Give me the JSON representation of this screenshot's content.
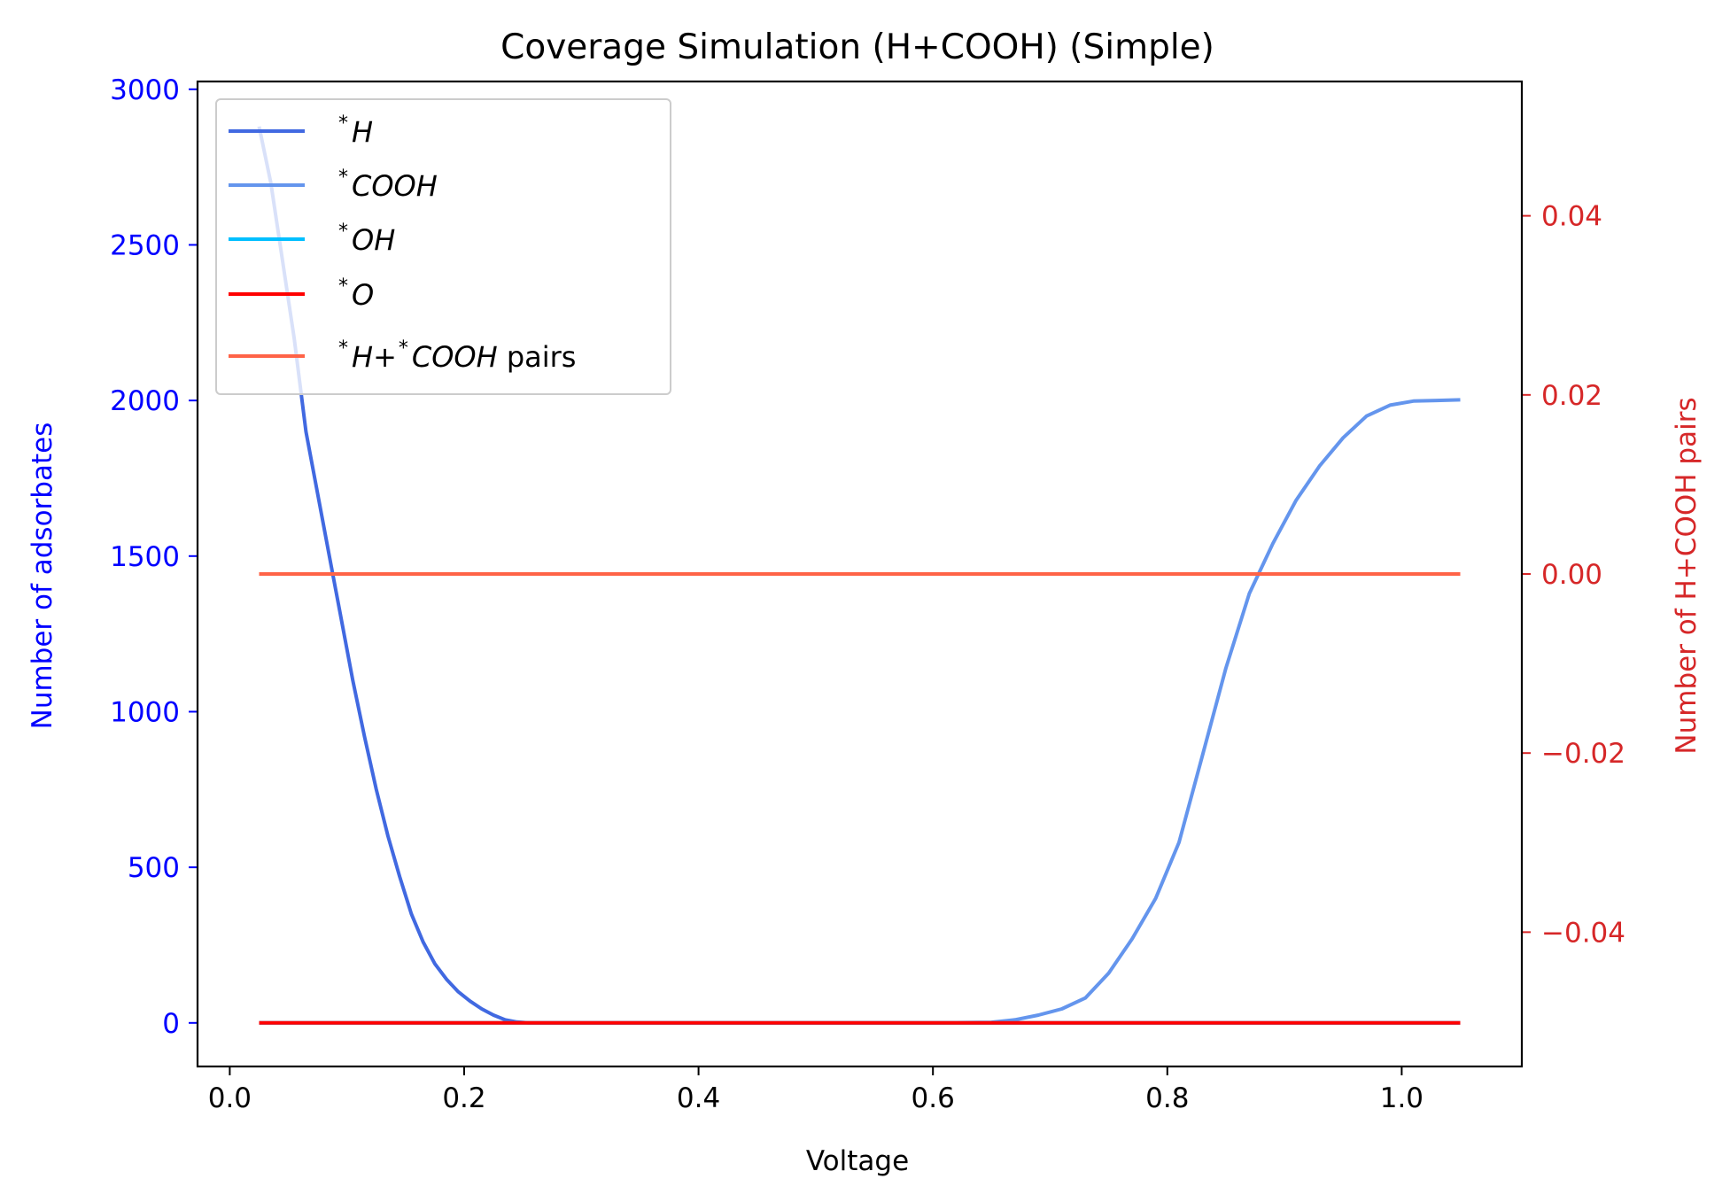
{
  "chart_data": {
    "type": "line",
    "title": "Coverage Simulation (H+COOH) (Simple)",
    "xlabel": "Voltage",
    "ylabel_left": "Number of adsorbates",
    "ylabel_right": "Number of H+COOH pairs",
    "xlim": [
      -0.0275,
      1.1025
    ],
    "ylim_left": [
      -140,
      3025
    ],
    "ylim_right": [
      -0.055,
      0.055
    ],
    "x_ticks": [
      "0.0",
      "0.2",
      "0.4",
      "0.6",
      "0.8",
      "1.0"
    ],
    "y_left_ticks": [
      "0",
      "500",
      "1000",
      "1500",
      "2000",
      "2500",
      "3000"
    ],
    "y_right_ticks": [
      "−0.04",
      "−0.02",
      "0.00",
      "0.02",
      "0.04"
    ],
    "grid": false,
    "legend_position": "upper-left",
    "colors": {
      "left_axis": "#0000ff",
      "right_axis": "#d62728"
    },
    "series": [
      {
        "name_sup": "*",
        "name_main": "H",
        "name_suffix": "",
        "color": "#4169e1",
        "axis": "left",
        "x": [
          0.025,
          0.035,
          0.045,
          0.055,
          0.065,
          0.075,
          0.085,
          0.095,
          0.105,
          0.115,
          0.125,
          0.135,
          0.145,
          0.155,
          0.165,
          0.175,
          0.185,
          0.195,
          0.205,
          0.215,
          0.225,
          0.235,
          0.245,
          0.255,
          0.3,
          0.4,
          0.5,
          0.6,
          0.7,
          0.8,
          0.9,
          1.0,
          1.05
        ],
        "y": [
          2880,
          2700,
          2450,
          2200,
          1900,
          1700,
          1500,
          1300,
          1100,
          920,
          750,
          600,
          470,
          350,
          260,
          190,
          140,
          100,
          70,
          45,
          25,
          10,
          3,
          0,
          0,
          0,
          0,
          0,
          0,
          0,
          0,
          0,
          0
        ]
      },
      {
        "name_sup": "*",
        "name_main": "COOH",
        "name_suffix": "",
        "color": "#6495ed",
        "axis": "left",
        "x": [
          0.025,
          0.1,
          0.2,
          0.3,
          0.4,
          0.5,
          0.6,
          0.65,
          0.67,
          0.69,
          0.71,
          0.73,
          0.75,
          0.77,
          0.79,
          0.81,
          0.83,
          0.85,
          0.87,
          0.89,
          0.91,
          0.93,
          0.95,
          0.97,
          0.99,
          1.01,
          1.03,
          1.05
        ],
        "y": [
          0,
          0,
          0,
          0,
          0,
          0,
          0,
          2,
          10,
          25,
          45,
          80,
          160,
          270,
          400,
          580,
          860,
          1140,
          1380,
          1540,
          1680,
          1790,
          1880,
          1950,
          1985,
          1998,
          2000,
          2002
        ]
      },
      {
        "name_sup": "*",
        "name_main": "OH",
        "name_suffix": "",
        "color": "#00bfff",
        "axis": "left",
        "x": [
          0.025,
          1.05
        ],
        "y": [
          0,
          0
        ]
      },
      {
        "name_sup": "*",
        "name_main": "O",
        "name_suffix": "",
        "color": "#ff0000",
        "axis": "left",
        "x": [
          0.025,
          1.05
        ],
        "y": [
          0,
          0
        ]
      },
      {
        "name_sup": "*",
        "name_main": "H+",
        "name_sup2": "*",
        "name_main2": "COOH",
        "name_suffix": " pairs",
        "color": "#ff6347",
        "axis": "right",
        "x": [
          0.025,
          1.05
        ],
        "y": [
          0,
          0
        ]
      }
    ]
  }
}
